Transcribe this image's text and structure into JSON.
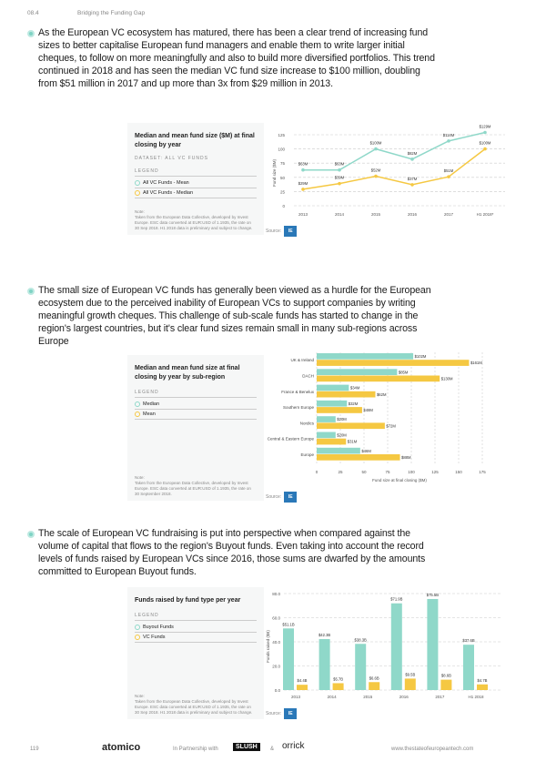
{
  "header": {
    "section": "08.4",
    "title": "Bridging the Funding Gap"
  },
  "paragraphs": [
    "As the European VC ecosystem has matured, there has been a clear trend of increasing fund sizes to better capitalise European fund managers and enable them to write larger initial cheques, to follow on more meaningfully and also to build more diversified portfolios. This trend continued in 2018 and has seen the median VC fund size increase to $100 million, doubling from $51 million in 2017 and up more than 3x from $29 million in 2013.",
    "The small size of European VC funds has generally been viewed as a hurdle for the European ecosystem due to the perceived inability of European VCs to support companies by writing meaningful growth cheques. This challenge of sub-scale funds has started to change in the region's largest countries, but it's clear fund sizes remain small in many sub-regions across Europe",
    "The scale of European VC fundraising is put into perspective when compared against the volume of capital that flows to the region's Buyout funds. Even taking into account the record levels of funds raised by European VCs since 2016, those sums are dwarfed by the amounts committed to European Buyout funds."
  ],
  "legend_label": "LEGEND",
  "source_label": "Source:",
  "source_logo": "IE",
  "note_label": "Note:",
  "colors": {
    "teal": "#8fd8c9",
    "yellow": "#f5c842"
  },
  "chart_data": [
    {
      "type": "line",
      "title": "Median and mean fund size ($M) at final closing by year",
      "dataset": "DATASET: ALL VC FUNDS",
      "categories": [
        "2013",
        "2014",
        "2015",
        "2016",
        "2017",
        "H1 2018*"
      ],
      "ylabel": "Fund size ($M)",
      "ylim": [
        0,
        125
      ],
      "yticks": [
        "0",
        "25",
        "50",
        "75",
        "100",
        "125"
      ],
      "series": [
        {
          "name": "All VC Funds - Mean",
          "color": "#8fd8c9",
          "values": [
            63,
            63,
            100,
            82,
            114,
            129
          ],
          "labels": [
            "$63M",
            "$63M",
            "$100M",
            "$82M",
            "$114M",
            "$129M"
          ]
        },
        {
          "name": "All VC Funds - Median",
          "color": "#f5c842",
          "values": [
            29,
            39,
            52,
            37,
            51,
            100
          ],
          "labels": [
            "$29M",
            "$39M",
            "$52M",
            "$37M",
            "$51M",
            "$100M"
          ]
        }
      ],
      "note": "Taken from the European Data Collective, developed by Invest Europe. ESC data converted at EUR:USD of 1.1935, the rate on 30 Sep 2018. H1 2018 data is preliminary and subject to change."
    },
    {
      "type": "bar",
      "orientation": "horizontal",
      "title": "Median and mean fund size at final closing by year by sub-region",
      "categories": [
        "UK & Ireland",
        "DACH",
        "France & Benelux",
        "Southern Europe",
        "Nordics",
        "Central & Eastern Europe",
        "Europe"
      ],
      "xlabel": "Fund size at final closing ($M)",
      "xlim": [
        0,
        175
      ],
      "xticks": [
        "0",
        "25",
        "50",
        "75",
        "100",
        "125",
        "150",
        "175"
      ],
      "series": [
        {
          "name": "Median",
          "color": "#8fd8c9",
          "values": [
            102,
            85,
            34,
            32,
            20,
            20,
            46
          ],
          "labels": [
            "$102M",
            "$85M",
            "$34M",
            "$32M",
            "$20M",
            "$20M",
            "$46M"
          ]
        },
        {
          "name": "Mean",
          "color": "#f5c842",
          "values": [
            161,
            130,
            62,
            48,
            72,
            31,
            88
          ],
          "labels": [
            "$161M",
            "$130M",
            "$62M",
            "$48M",
            "$72M",
            "$31M",
            "$88M"
          ]
        }
      ],
      "note": "Taken from the European Data Collective, developed by Invest Europe. ESC data converted at EUR:USD of 1.1935, the rate on 30 September 2018."
    },
    {
      "type": "bar",
      "title": "Funds raised by fund type per year",
      "categories": [
        "2013",
        "2014",
        "2015",
        "2016",
        "2017",
        "H1 2018"
      ],
      "ylabel": "Funds raised ($B)",
      "ylim": [
        0,
        80
      ],
      "yticks": [
        "0.0",
        "20.0",
        "40.0",
        "60.0",
        "80.0"
      ],
      "series": [
        {
          "name": "Buyout Funds",
          "color": "#8fd8c9",
          "values": [
            51.1,
            42.3,
            38.3,
            71.9,
            75.5,
            37.6
          ],
          "labels": [
            "$51.1B",
            "$42.3B",
            "$38.3B",
            "$71.9B",
            "$75.5B",
            "$37.6B"
          ]
        },
        {
          "name": "VC Funds",
          "color": "#f5c842",
          "values": [
            4.4,
            5.7,
            6.6,
            9.5,
            8.6,
            4.7
          ],
          "labels": [
            "$4.4B",
            "$5.7B",
            "$6.6B",
            "$9.5B",
            "$8.6B",
            "$4.7B"
          ]
        }
      ],
      "note": "Taken from the European Data Collective, developed by Invest Europe. ESC data converted at EUR:USD of 1.1935, the rate on 30 Sep 2018. H1 2018 data is preliminary and subject to change."
    }
  ],
  "footer": {
    "page": "119",
    "brand": "atomico",
    "partner_text": "In Partnership with",
    "partner1": "SLUSH",
    "amp": "&",
    "partner2": "orrick",
    "url": "www.thestateofeuropeantech.com"
  }
}
